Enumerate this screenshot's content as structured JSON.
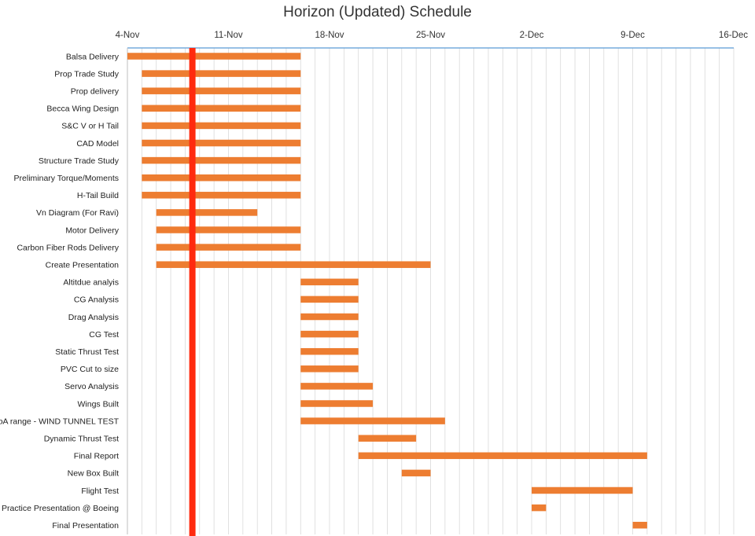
{
  "chart_data": {
    "type": "gantt",
    "title": "Horizon (Updated) Schedule",
    "x_unit": "days since 4-Nov",
    "xlim": [
      0,
      42
    ],
    "x_ticks": [
      {
        "day": 0,
        "label": "4-Nov"
      },
      {
        "day": 7,
        "label": "11-Nov"
      },
      {
        "day": 14,
        "label": "18-Nov"
      },
      {
        "day": 21,
        "label": "25-Nov"
      },
      {
        "day": 28,
        "label": "2-Dec"
      },
      {
        "day": 35,
        "label": "9-Dec"
      },
      {
        "day": 42,
        "label": "16-Dec"
      }
    ],
    "today_marker_day": 4.5,
    "colors": {
      "bar": "#ed7d31",
      "today": "#ff2a0e",
      "axis": "#5b9bd5",
      "grid": "#d9d9d9"
    },
    "tasks": [
      {
        "name": "Balsa Delivery",
        "start": 0,
        "end": 12
      },
      {
        "name": "Prop Trade Study",
        "start": 1,
        "end": 12
      },
      {
        "name": "Prop delivery",
        "start": 1,
        "end": 12
      },
      {
        "name": "Becca Wing Design",
        "start": 1,
        "end": 12
      },
      {
        "name": "S&C V or H Tail",
        "start": 1,
        "end": 12
      },
      {
        "name": "CAD Model",
        "start": 1,
        "end": 12
      },
      {
        "name": "Structure Trade Study",
        "start": 1,
        "end": 12
      },
      {
        "name": "Preliminary Torque/Moments",
        "start": 1,
        "end": 12
      },
      {
        "name": "H-Tail Build",
        "start": 1,
        "end": 12
      },
      {
        "name": "Vn Diagram (For Ravi)",
        "start": 2,
        "end": 9
      },
      {
        "name": "Motor Delivery",
        "start": 2,
        "end": 12
      },
      {
        "name": "Carbon Fiber Rods Delivery",
        "start": 2,
        "end": 12
      },
      {
        "name": "Create Presentation",
        "start": 2,
        "end": 21
      },
      {
        "name": "Altitdue analyis",
        "start": 12,
        "end": 16
      },
      {
        "name": "CG Analysis",
        "start": 12,
        "end": 16
      },
      {
        "name": "Drag Analysis",
        "start": 12,
        "end": 16
      },
      {
        "name": "CG Test",
        "start": 12,
        "end": 16
      },
      {
        "name": "Static Thrust Test",
        "start": 12,
        "end": 16
      },
      {
        "name": "PVC Cut to size",
        "start": 12,
        "end": 16
      },
      {
        "name": "Servo Analysis",
        "start": 12,
        "end": 17
      },
      {
        "name": "Wings Built",
        "start": 12,
        "end": 17
      },
      {
        "name": "AoA range - WIND TUNNEL TEST",
        "start": 12,
        "end": 22
      },
      {
        "name": "Dynamic Thrust Test",
        "start": 16,
        "end": 20
      },
      {
        "name": "Final Report",
        "start": 16,
        "end": 36
      },
      {
        "name": "New Box Built",
        "start": 19,
        "end": 21
      },
      {
        "name": "Flight Test",
        "start": 28,
        "end": 35
      },
      {
        "name": "Practice Presentation @ Boeing",
        "start": 28,
        "end": 29
      },
      {
        "name": "Final Presentation",
        "start": 35,
        "end": 36
      }
    ]
  }
}
